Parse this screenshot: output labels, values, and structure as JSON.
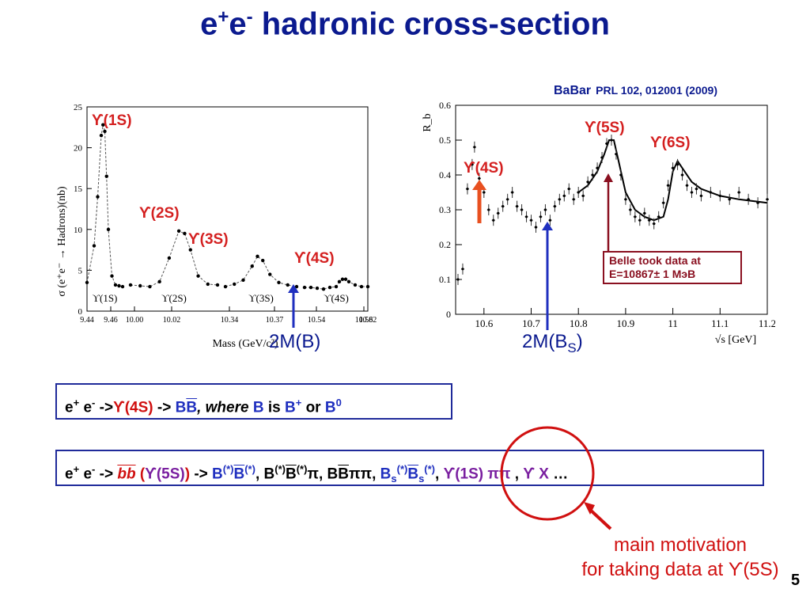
{
  "title": {
    "pre": "e",
    "sup1": "+",
    "mid": "e",
    "sup2": "-",
    "post": " hadronic cross-section"
  },
  "chart_data": [
    {
      "type": "scatter",
      "title": "",
      "xlabel": "Mass (GeV/c²)",
      "ylabel": "σ (e⁺e⁻ → Hadrons)(nb)",
      "ylim": [
        0,
        25
      ],
      "x_ticks": [
        "9.44",
        "9.46",
        "10.00",
        "10.02",
        "10.34",
        "10.37",
        "10.54",
        "10.58",
        "10.62"
      ],
      "y_ticks": [
        "0",
        "5",
        "10",
        "15",
        "20",
        "25"
      ],
      "segment_labels": [
        "ϒ(1S)",
        "ϒ(2S)",
        "ϒ(3S)",
        "ϒ(4S)"
      ],
      "peak_labels": [
        "ϒ(1S)",
        "ϒ(2S)",
        "ϒ(3S)",
        "ϒ(4S)"
      ],
      "threshold_label": "2M(B)",
      "segments": [
        {
          "name": "1S",
          "x": [
            9.44,
            9.448,
            9.452,
            9.456,
            9.458,
            9.46,
            9.462,
            9.464,
            9.468,
            9.472,
            9.476,
            9.48
          ],
          "y": [
            3.5,
            8,
            14,
            21.5,
            22.8,
            22,
            16.5,
            10,
            4.3,
            3.2,
            3.1,
            3.0
          ]
        },
        {
          "name": "2S",
          "x": [
            9.995,
            10.0,
            10.005,
            10.01,
            10.015,
            10.02,
            10.023,
            10.026,
            10.03,
            10.035,
            10.04
          ],
          "y": [
            3.2,
            3.1,
            3.0,
            3.6,
            6.5,
            9.8,
            9.5,
            7.5,
            4.3,
            3.3,
            3.2
          ]
        },
        {
          "name": "3S",
          "x": [
            10.335,
            10.34,
            10.345,
            10.35,
            10.353,
            10.356,
            10.36,
            10.365,
            10.37,
            10.375
          ],
          "y": [
            3.0,
            3.3,
            3.8,
            5.5,
            6.7,
            6.2,
            4.5,
            3.5,
            3.2,
            3.0
          ]
        },
        {
          "name": "4S",
          "x": [
            10.52,
            10.53,
            10.54,
            10.55,
            10.56,
            10.57,
            10.575,
            10.58,
            10.585,
            10.59,
            10.6,
            10.61,
            10.62
          ],
          "y": [
            2.9,
            2.9,
            2.8,
            2.7,
            2.9,
            3.0,
            3.6,
            3.9,
            3.9,
            3.6,
            3.2,
            3.0,
            3.0
          ]
        }
      ]
    },
    {
      "type": "scatter",
      "title": "",
      "xlabel": "√s [GeV]",
      "ylabel": "R_b",
      "xlim": [
        10.54,
        11.2
      ],
      "ylim": [
        0,
        0.6
      ],
      "x_ticks": [
        "10.6",
        "10.7",
        "10.8",
        "10.9",
        "11",
        "11.1",
        "11.2"
      ],
      "y_ticks": [
        "0",
        "0.1",
        "0.2",
        "0.3",
        "0.4",
        "0.5",
        "0.6"
      ],
      "peak_labels": [
        "ϒ(4S)",
        "ϒ(5S)",
        "ϒ(6S)"
      ],
      "threshold_label": "2M(B",
      "threshold_sub": "S",
      "threshold_post": ")",
      "annotation": {
        "line1": "Belle took data at",
        "line2": "E=10867± 1 MэВ"
      },
      "reference": {
        "experiment": "BaBar",
        "citation": "PRL 102, 012001 (2009)"
      },
      "points": {
        "x": [
          10.545,
          10.555,
          10.565,
          10.575,
          10.58,
          10.59,
          10.6,
          10.61,
          10.62,
          10.63,
          10.64,
          10.65,
          10.66,
          10.67,
          10.68,
          10.69,
          10.7,
          10.71,
          10.72,
          10.73,
          10.74,
          10.75,
          10.76,
          10.77,
          10.78,
          10.79,
          10.8,
          10.81,
          10.82,
          10.83,
          10.84,
          10.85,
          10.86,
          10.87,
          10.88,
          10.89,
          10.9,
          10.91,
          10.92,
          10.93,
          10.94,
          10.95,
          10.96,
          10.97,
          10.98,
          10.99,
          11.0,
          11.01,
          11.02,
          11.03,
          11.04,
          11.05,
          11.06,
          11.08,
          11.1,
          11.12,
          11.14,
          11.16,
          11.18,
          11.2
        ],
        "y": [
          0.1,
          0.13,
          0.36,
          0.43,
          0.48,
          0.39,
          0.35,
          0.3,
          0.27,
          0.29,
          0.31,
          0.33,
          0.35,
          0.31,
          0.3,
          0.28,
          0.27,
          0.25,
          0.28,
          0.3,
          0.27,
          0.31,
          0.33,
          0.34,
          0.36,
          0.33,
          0.35,
          0.34,
          0.38,
          0.4,
          0.42,
          0.45,
          0.49,
          0.5,
          0.46,
          0.4,
          0.33,
          0.3,
          0.28,
          0.27,
          0.29,
          0.27,
          0.26,
          0.28,
          0.32,
          0.37,
          0.42,
          0.43,
          0.4,
          0.37,
          0.35,
          0.36,
          0.34,
          0.35,
          0.34,
          0.33,
          0.35,
          0.33,
          0.32,
          0.33
        ]
      },
      "fit": {
        "x": [
          10.8,
          10.82,
          10.84,
          10.855,
          10.865,
          10.875,
          10.885,
          10.9,
          10.92,
          10.94,
          10.96,
          10.98,
          10.99,
          11.0,
          11.01,
          11.02,
          11.04,
          11.06,
          11.1,
          11.14,
          11.2
        ],
        "y": [
          0.35,
          0.37,
          0.41,
          0.46,
          0.5,
          0.5,
          0.44,
          0.35,
          0.3,
          0.28,
          0.27,
          0.28,
          0.33,
          0.41,
          0.44,
          0.42,
          0.38,
          0.36,
          0.34,
          0.33,
          0.32
        ]
      }
    }
  ],
  "box1": {
    "ee": "e",
    "sp": "+",
    "e2": "e",
    "sm": "-",
    "arrow": "->",
    "ups": "ϒ(4S)",
    "arrow2": " -> ",
    "bb1": "B",
    "bb2": "B",
    "where": ", where ",
    "b": "B",
    "is": " is ",
    "b2": "B",
    "bsup": "+",
    "or": " or ",
    "b3": "B",
    "b0": "0"
  },
  "box2": {
    "ee": "e",
    "sp": "+",
    "e2": "e",
    "sm": "-",
    "arrow": " -> ",
    "bbbar": "bb",
    "paren": " (",
    "ups5": "ϒ(5S)",
    "paren2": ")",
    "arrow2": " -> ",
    "t1": "B",
    "t1s": "(*)",
    "t1b": "B",
    "t1bs": "(*)",
    "c1": ",  ",
    "t2": "B",
    "t2s": "(*)",
    "t2b": "B",
    "t2bs": "(*)",
    "t2pi": "π",
    "c2": ",  ",
    "t3": "B",
    "t3b": "B",
    "t3pi": "ππ",
    "c3": ",  ",
    "t4": "B",
    "t4sub": "s",
    "t4s": "(*)",
    "t4b": "B",
    "t4bsub": "s",
    "t4bs": "(*)",
    "c4": ", ",
    "t5": "ϒ(1S)",
    "t5pi": " ππ",
    "c5": " , ",
    "t6": "ϒ X",
    "dots": " …"
  },
  "motivation": {
    "line1": "main motivation",
    "line2": "for taking data at ϒ(5S)"
  },
  "page_number": "5",
  "colors": {
    "title": "#0b1a8f",
    "red": "#d42020",
    "blue": "#1f2fbf",
    "belle": "#8a1020"
  }
}
